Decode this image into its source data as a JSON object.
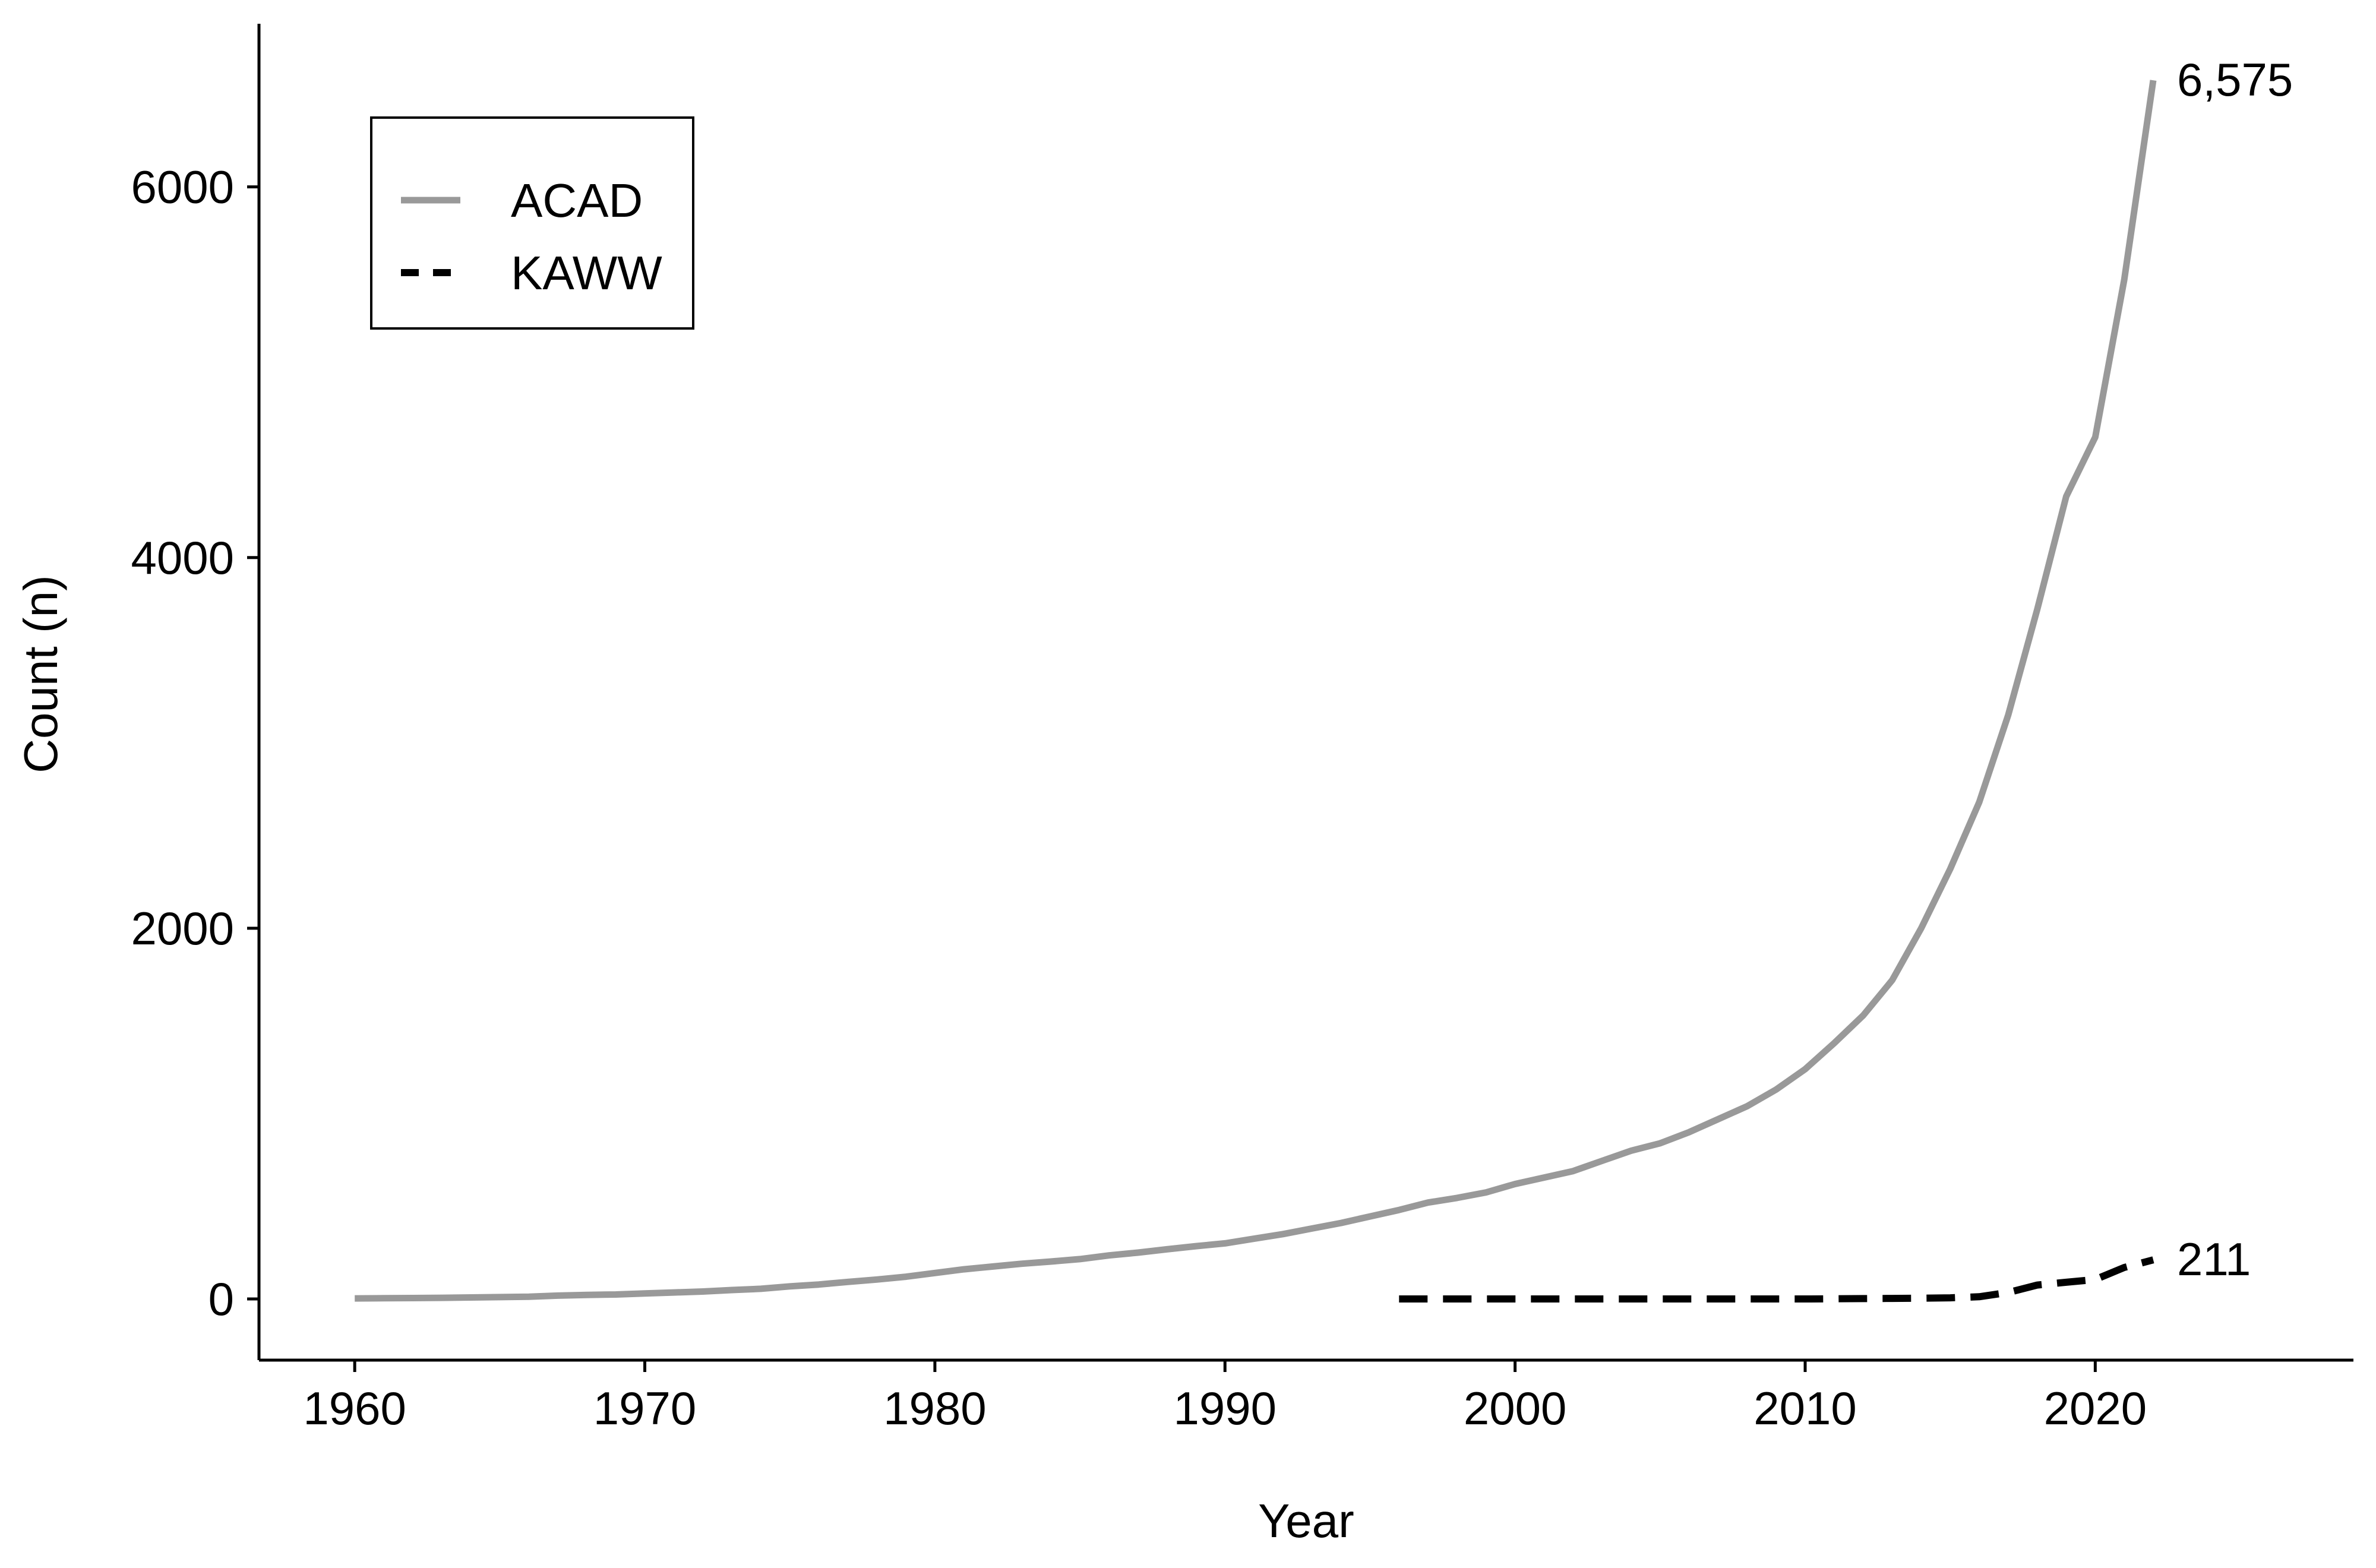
{
  "chart_data": {
    "type": "line",
    "title": "",
    "xlabel": "Year",
    "ylabel": "Count (n)",
    "xlim": [
      1956.7,
      2028.9
    ],
    "ylim": [
      -330,
      6880
    ],
    "x_ticks": [
      1960,
      1970,
      1980,
      1990,
      2000,
      2010,
      2020
    ],
    "y_ticks": [
      0,
      2000,
      4000,
      6000
    ],
    "grid": false,
    "legend_position": "top-left",
    "series": [
      {
        "name": "ACAD",
        "color": "#999999",
        "line_style": "solid",
        "end_label": "6,575",
        "x": [
          1960,
          1961,
          1962,
          1963,
          1964,
          1965,
          1966,
          1967,
          1968,
          1969,
          1970,
          1971,
          1972,
          1973,
          1974,
          1975,
          1976,
          1977,
          1978,
          1979,
          1980,
          1981,
          1982,
          1983,
          1984,
          1985,
          1986,
          1987,
          1988,
          1989,
          1990,
          1991,
          1992,
          1993,
          1994,
          1995,
          1996,
          1997,
          1998,
          1999,
          2000,
          2001,
          2002,
          2003,
          2004,
          2005,
          2006,
          2007,
          2008,
          2009,
          2010,
          2011,
          2012,
          2013,
          2014,
          2015,
          2016,
          2017,
          2018,
          2019,
          2020,
          2021,
          2022
        ],
        "y": [
          3,
          4,
          5,
          6,
          8,
          10,
          12,
          18,
          22,
          24,
          30,
          35,
          40,
          48,
          55,
          68,
          78,
          92,
          105,
          120,
          140,
          160,
          175,
          190,
          202,
          215,
          235,
          250,
          268,
          285,
          300,
          325,
          350,
          380,
          410,
          445,
          480,
          520,
          545,
          575,
          620,
          655,
          690,
          745,
          800,
          840,
          900,
          970,
          1040,
          1130,
          1240,
          1380,
          1530,
          1720,
          2000,
          2320,
          2680,
          3150,
          3720,
          4330,
          4650,
          5500,
          6575
        ]
      },
      {
        "name": "KAWW",
        "color": "#000000",
        "line_style": "dashed",
        "end_label": "211",
        "x": [
          1996,
          1997,
          1998,
          1999,
          2000,
          2001,
          2002,
          2003,
          2004,
          2005,
          2006,
          2007,
          2008,
          2009,
          2010,
          2011,
          2012,
          2013,
          2014,
          2015,
          2016,
          2017,
          2018,
          2019,
          2020,
          2021,
          2022
        ],
        "y": [
          0,
          0,
          0,
          0,
          0,
          0,
          0,
          0,
          0,
          0,
          0,
          0,
          0,
          0,
          0,
          1,
          2,
          3,
          4,
          6,
          12,
          35,
          75,
          90,
          105,
          170,
          211
        ]
      }
    ]
  }
}
